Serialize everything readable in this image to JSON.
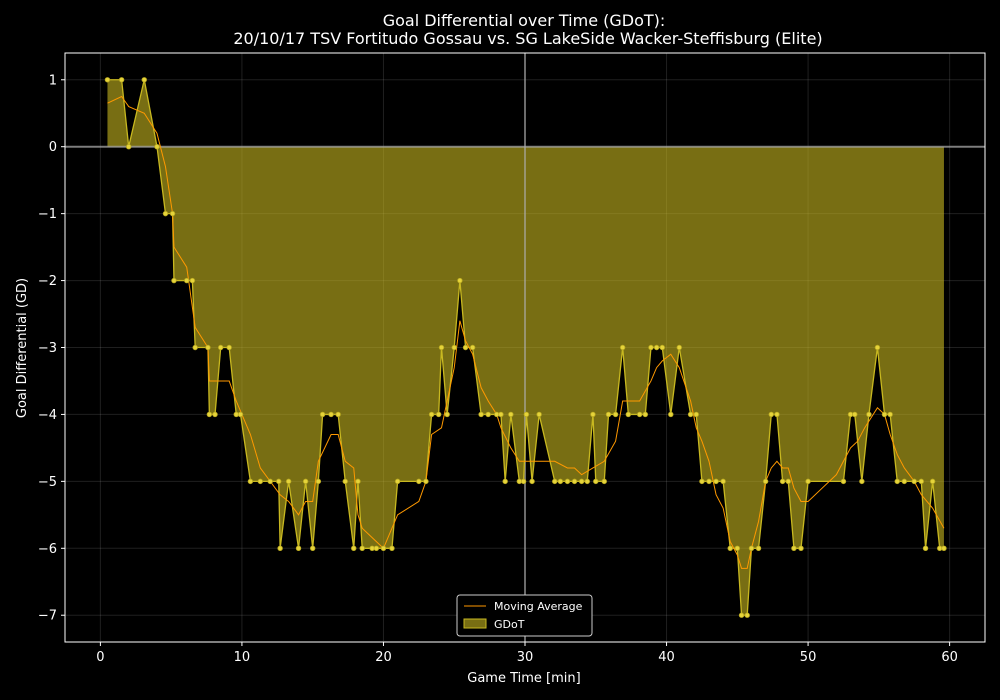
{
  "chart_data": {
    "type": "area",
    "title": "Goal Differential over Time (GDoT):",
    "subtitle": "20/10/17 TSV Fortitudo Gossau  vs.  SG LakeSide Wacker-Steffisburg (Elite)",
    "xlabel": "Game Time [min]",
    "ylabel": "Goal Differential (GD)",
    "xlim": [
      -2.5,
      62.5
    ],
    "ylim": [
      -7.4,
      1.4
    ],
    "xticks": [
      "0",
      "10",
      "20",
      "30",
      "40",
      "50",
      "60"
    ],
    "xtick_values": [
      0,
      10,
      20,
      30,
      40,
      50,
      60
    ],
    "yticks": [
      "1",
      "0",
      "−1",
      "−2",
      "−3",
      "−4",
      "−5",
      "−6",
      "−7"
    ],
    "ytick_values": [
      1,
      0,
      -1,
      -2,
      -3,
      -4,
      -5,
      -6,
      -7
    ],
    "grid": true,
    "vline_x": 30,
    "hline_y": 0,
    "legend_position": "lower-center",
    "series": [
      {
        "name": "GDoT",
        "color": "#c8b820",
        "points": [
          [
            0.5,
            1
          ],
          [
            1.5,
            1
          ],
          [
            2.0,
            0
          ],
          [
            3.1,
            1
          ],
          [
            4.0,
            0
          ],
          [
            4.6,
            -1
          ],
          [
            5.1,
            -1
          ],
          [
            5.2,
            -2
          ],
          [
            6.1,
            -2
          ],
          [
            6.5,
            -2
          ],
          [
            6.7,
            -3
          ],
          [
            7.6,
            -3
          ],
          [
            7.7,
            -4
          ],
          [
            8.1,
            -4
          ],
          [
            8.5,
            -3
          ],
          [
            9.1,
            -3
          ],
          [
            9.6,
            -4
          ],
          [
            9.9,
            -4
          ],
          [
            10.6,
            -5
          ],
          [
            11.3,
            -5
          ],
          [
            12.0,
            -5
          ],
          [
            12.6,
            -5
          ],
          [
            12.7,
            -6
          ],
          [
            13.3,
            -5
          ],
          [
            14.0,
            -6
          ],
          [
            14.5,
            -5
          ],
          [
            15.0,
            -6
          ],
          [
            15.4,
            -5
          ],
          [
            15.7,
            -4
          ],
          [
            16.3,
            -4
          ],
          [
            16.8,
            -4
          ],
          [
            17.3,
            -5
          ],
          [
            17.9,
            -6
          ],
          [
            18.2,
            -5
          ],
          [
            18.5,
            -6
          ],
          [
            19.2,
            -6
          ],
          [
            19.5,
            -6
          ],
          [
            20.0,
            -6
          ],
          [
            20.6,
            -6
          ],
          [
            21.0,
            -5
          ],
          [
            22.5,
            -5
          ],
          [
            23.0,
            -5
          ],
          [
            23.4,
            -4
          ],
          [
            23.9,
            -4
          ],
          [
            24.1,
            -3
          ],
          [
            24.5,
            -4
          ],
          [
            25.0,
            -3
          ],
          [
            25.4,
            -2
          ],
          [
            25.8,
            -3
          ],
          [
            26.3,
            -3
          ],
          [
            26.9,
            -4
          ],
          [
            27.4,
            -4
          ],
          [
            28.0,
            -4
          ],
          [
            28.3,
            -4
          ],
          [
            28.6,
            -5
          ],
          [
            29.0,
            -4
          ],
          [
            29.6,
            -5
          ],
          [
            29.9,
            -5
          ],
          [
            30.1,
            -4
          ],
          [
            30.5,
            -5
          ],
          [
            31.0,
            -4
          ],
          [
            32.1,
            -5
          ],
          [
            32.5,
            -5
          ],
          [
            33.0,
            -5
          ],
          [
            33.5,
            -5
          ],
          [
            34.0,
            -5
          ],
          [
            34.4,
            -5
          ],
          [
            34.8,
            -4
          ],
          [
            35.0,
            -5
          ],
          [
            35.6,
            -5
          ],
          [
            35.9,
            -4
          ],
          [
            36.4,
            -4
          ],
          [
            36.9,
            -3
          ],
          [
            37.3,
            -4
          ],
          [
            38.1,
            -4
          ],
          [
            38.5,
            -4
          ],
          [
            38.9,
            -3
          ],
          [
            39.3,
            -3
          ],
          [
            39.7,
            -3
          ],
          [
            40.3,
            -4
          ],
          [
            40.9,
            -3
          ],
          [
            41.7,
            -4
          ],
          [
            42.1,
            -4
          ],
          [
            42.5,
            -5
          ],
          [
            43.0,
            -5
          ],
          [
            43.5,
            -5
          ],
          [
            44.0,
            -5
          ],
          [
            44.5,
            -6
          ],
          [
            45.0,
            -6
          ],
          [
            45.3,
            -7
          ],
          [
            45.7,
            -7
          ],
          [
            46.0,
            -6
          ],
          [
            46.5,
            -6
          ],
          [
            47.0,
            -5
          ],
          [
            47.4,
            -4
          ],
          [
            47.8,
            -4
          ],
          [
            48.2,
            -5
          ],
          [
            48.6,
            -5
          ],
          [
            49.0,
            -6
          ],
          [
            49.5,
            -6
          ],
          [
            50.0,
            -5
          ],
          [
            52.5,
            -5
          ],
          [
            53.0,
            -4
          ],
          [
            53.3,
            -4
          ],
          [
            53.8,
            -5
          ],
          [
            54.3,
            -4
          ],
          [
            54.9,
            -3
          ],
          [
            55.4,
            -4
          ],
          [
            55.8,
            -4
          ],
          [
            56.3,
            -5
          ],
          [
            56.8,
            -5
          ],
          [
            57.5,
            -5
          ],
          [
            58.0,
            -5
          ],
          [
            58.3,
            -6
          ],
          [
            58.8,
            -5
          ],
          [
            59.3,
            -6
          ],
          [
            59.6,
            -6
          ]
        ]
      },
      {
        "name": "Moving Average",
        "color": "#ff9900",
        "points": [
          [
            0.5,
            0.65
          ],
          [
            1.5,
            0.75
          ],
          [
            2.0,
            0.6
          ],
          [
            3.1,
            0.5
          ],
          [
            4.0,
            0.2
          ],
          [
            4.6,
            -0.3
          ],
          [
            5.1,
            -1.0
          ],
          [
            5.2,
            -1.5
          ],
          [
            6.1,
            -1.8
          ],
          [
            6.7,
            -2.7
          ],
          [
            7.6,
            -3.0
          ],
          [
            7.7,
            -3.5
          ],
          [
            8.5,
            -3.5
          ],
          [
            9.1,
            -3.5
          ],
          [
            9.6,
            -3.8
          ],
          [
            10.6,
            -4.3
          ],
          [
            11.3,
            -4.8
          ],
          [
            12.0,
            -5.0
          ],
          [
            12.7,
            -5.2
          ],
          [
            13.3,
            -5.3
          ],
          [
            14.0,
            -5.5
          ],
          [
            14.5,
            -5.3
          ],
          [
            15.0,
            -5.3
          ],
          [
            15.4,
            -4.7
          ],
          [
            16.3,
            -4.3
          ],
          [
            16.8,
            -4.3
          ],
          [
            17.3,
            -4.7
          ],
          [
            17.9,
            -4.8
          ],
          [
            18.2,
            -5.5
          ],
          [
            18.5,
            -5.7
          ],
          [
            19.5,
            -5.9
          ],
          [
            20.0,
            -6.0
          ],
          [
            20.6,
            -5.7
          ],
          [
            21.0,
            -5.5
          ],
          [
            22.5,
            -5.3
          ],
          [
            23.0,
            -5.0
          ],
          [
            23.4,
            -4.3
          ],
          [
            24.1,
            -4.2
          ],
          [
            24.5,
            -3.8
          ],
          [
            25.0,
            -3.3
          ],
          [
            25.4,
            -2.6
          ],
          [
            25.8,
            -2.9
          ],
          [
            26.3,
            -3.1
          ],
          [
            26.9,
            -3.6
          ],
          [
            27.4,
            -3.8
          ],
          [
            28.0,
            -4.0
          ],
          [
            28.3,
            -4.2
          ],
          [
            29.0,
            -4.5
          ],
          [
            29.6,
            -4.7
          ],
          [
            30.1,
            -4.7
          ],
          [
            31.0,
            -4.7
          ],
          [
            32.1,
            -4.7
          ],
          [
            33.0,
            -4.8
          ],
          [
            33.5,
            -4.8
          ],
          [
            34.0,
            -4.9
          ],
          [
            34.8,
            -4.8
          ],
          [
            35.6,
            -4.7
          ],
          [
            36.4,
            -4.4
          ],
          [
            36.9,
            -3.8
          ],
          [
            37.3,
            -3.8
          ],
          [
            38.1,
            -3.8
          ],
          [
            38.9,
            -3.5
          ],
          [
            39.3,
            -3.3
          ],
          [
            39.7,
            -3.2
          ],
          [
            40.3,
            -3.1
          ],
          [
            40.9,
            -3.3
          ],
          [
            41.7,
            -3.8
          ],
          [
            42.1,
            -4.2
          ],
          [
            42.5,
            -4.4
          ],
          [
            43.0,
            -4.7
          ],
          [
            43.5,
            -5.2
          ],
          [
            44.0,
            -5.4
          ],
          [
            44.5,
            -5.9
          ],
          [
            45.0,
            -6.1
          ],
          [
            45.3,
            -6.3
          ],
          [
            45.7,
            -6.3
          ],
          [
            46.0,
            -6.0
          ],
          [
            46.5,
            -5.6
          ],
          [
            47.0,
            -5.0
          ],
          [
            47.4,
            -4.8
          ],
          [
            47.8,
            -4.7
          ],
          [
            48.2,
            -4.8
          ],
          [
            48.6,
            -4.8
          ],
          [
            49.0,
            -5.1
          ],
          [
            49.5,
            -5.3
          ],
          [
            50.0,
            -5.3
          ],
          [
            51.0,
            -5.1
          ],
          [
            52.0,
            -4.9
          ],
          [
            52.5,
            -4.7
          ],
          [
            53.0,
            -4.5
          ],
          [
            53.5,
            -4.4
          ],
          [
            54.0,
            -4.2
          ],
          [
            54.9,
            -3.9
          ],
          [
            55.4,
            -4.0
          ],
          [
            55.8,
            -4.3
          ],
          [
            56.3,
            -4.6
          ],
          [
            56.8,
            -4.8
          ],
          [
            57.5,
            -5.0
          ],
          [
            58.0,
            -5.2
          ],
          [
            58.8,
            -5.4
          ],
          [
            59.6,
            -5.7
          ]
        ]
      }
    ]
  }
}
